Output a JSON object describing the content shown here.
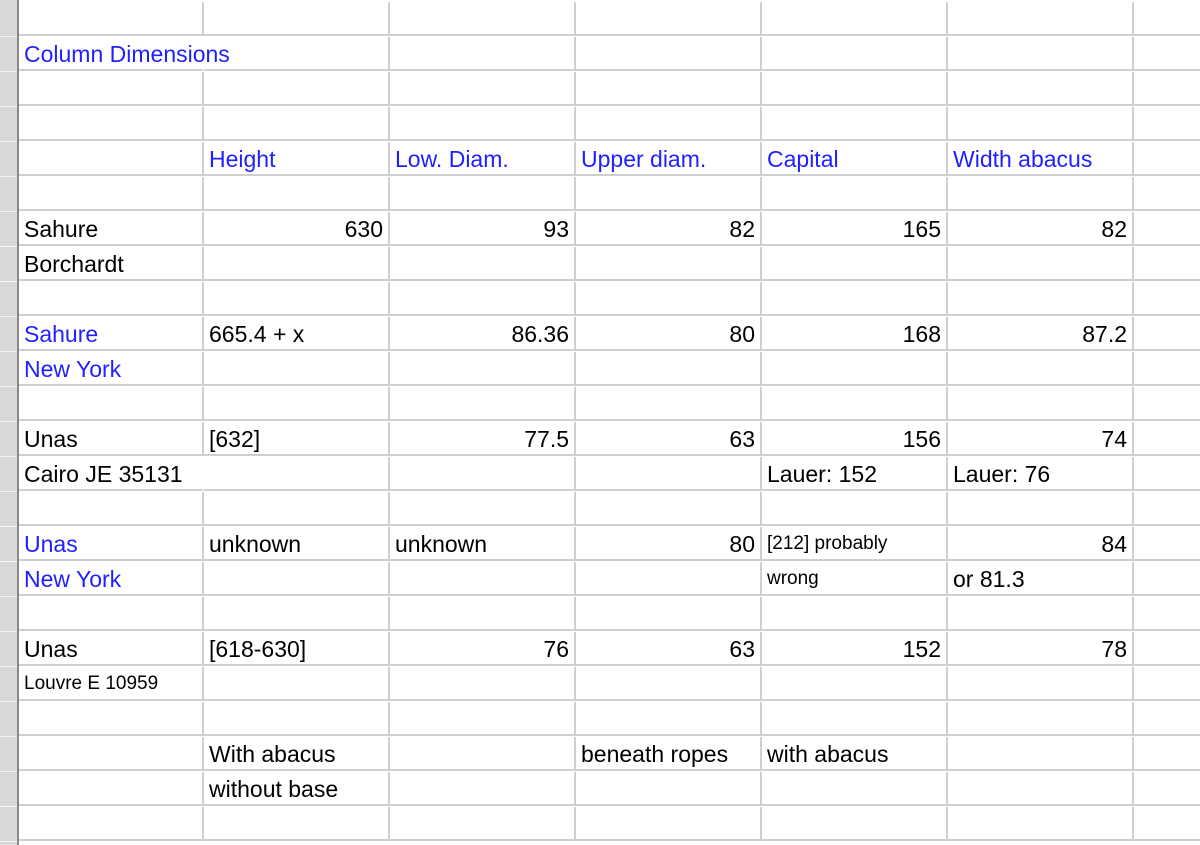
{
  "sheet": {
    "accent_color": "#1f1fff",
    "rows": [
      {
        "cells": [
          "",
          "",
          "",
          "",
          "",
          "",
          ""
        ]
      },
      {
        "cells": [
          "Column Dimensions",
          "",
          "",
          "",
          "",
          "",
          ""
        ],
        "accent": [
          0
        ]
      },
      {
        "cells": [
          "",
          "",
          "",
          "",
          "",
          "",
          ""
        ]
      },
      {
        "cells": [
          "",
          "",
          "",
          "",
          "",
          "",
          ""
        ]
      },
      {
        "cells": [
          "",
          "Height",
          "Low. Diam.",
          "Upper diam.",
          "Capital",
          "Width abacus",
          ""
        ],
        "accent": [
          1,
          2,
          3,
          4,
          5
        ]
      },
      {
        "cells": [
          "",
          "",
          "",
          "",
          "",
          "",
          ""
        ]
      },
      {
        "cells": [
          "Sahure",
          "630",
          "93",
          "82",
          "165",
          "82",
          ""
        ]
      },
      {
        "cells": [
          "Borchardt",
          "",
          "",
          "",
          "",
          "",
          ""
        ]
      },
      {
        "cells": [
          "",
          "",
          "",
          "",
          "",
          "",
          ""
        ]
      },
      {
        "cells": [
          "Sahure",
          "665.4 + x",
          "86.36",
          "80",
          "168",
          "87.2",
          ""
        ],
        "accent": [
          0
        ]
      },
      {
        "cells": [
          "New York",
          "",
          "",
          "",
          "",
          "",
          ""
        ],
        "accent": [
          0
        ]
      },
      {
        "cells": [
          "",
          "",
          "",
          "",
          "",
          "",
          ""
        ]
      },
      {
        "cells": [
          "Unas",
          "[632]",
          "77.5",
          "63",
          "156",
          "74",
          ""
        ]
      },
      {
        "cells": [
          "Cairo JE 35131",
          "",
          "",
          "",
          "Lauer: 152",
          "Lauer: 76",
          ""
        ]
      },
      {
        "cells": [
          "",
          "",
          "",
          "",
          "",
          "",
          ""
        ]
      },
      {
        "cells": [
          "Unas",
          "unknown",
          "unknown",
          "80",
          "[212] probably",
          "84",
          ""
        ],
        "accent": [
          0
        ],
        "small": [
          4
        ]
      },
      {
        "cells": [
          "New York",
          "",
          "",
          "",
          "wrong",
          "or 81.3",
          ""
        ],
        "accent": [
          0
        ],
        "small": [
          4
        ]
      },
      {
        "cells": [
          "",
          "",
          "",
          "",
          "",
          "",
          ""
        ]
      },
      {
        "cells": [
          "Unas",
          "[618-630]",
          "76",
          "63",
          "152",
          "78",
          ""
        ]
      },
      {
        "cells": [
          "Louvre E 10959",
          "",
          "",
          "",
          "",
          "",
          ""
        ],
        "small": [
          0
        ]
      },
      {
        "cells": [
          "",
          "",
          "",
          "",
          "",
          "",
          ""
        ]
      },
      {
        "cells": [
          "",
          "With abacus",
          "",
          "beneath ropes",
          "with abacus",
          "",
          ""
        ]
      },
      {
        "cells": [
          "",
          "without base",
          "",
          "",
          "",
          "",
          ""
        ]
      },
      {
        "cells": [
          "",
          "",
          "",
          "",
          "",
          "",
          ""
        ]
      }
    ]
  }
}
